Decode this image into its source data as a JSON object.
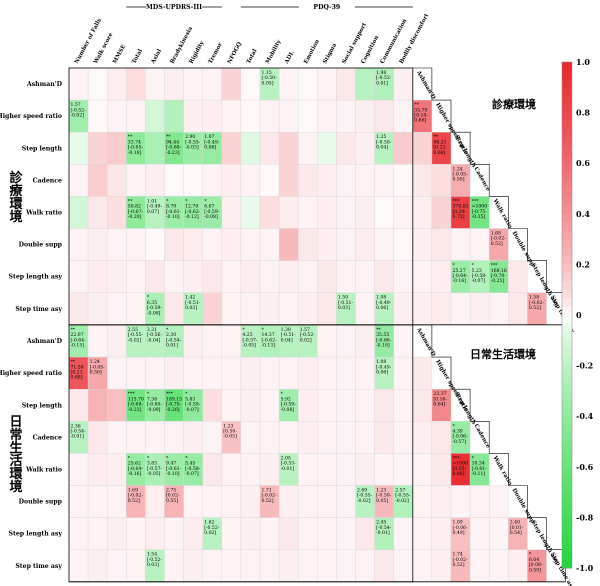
{
  "chart_data": {
    "type": "heatmap",
    "group_labels": [
      "MDS-UPDRS-III",
      "PDQ-39"
    ],
    "columns": [
      "Number of Falls",
      "Walk score",
      "MMSE",
      "Total",
      "Axial",
      "Bradykinesia",
      "Rigidity",
      "Tremor",
      "NFOGQ",
      "Total",
      "Mobility",
      "ADL",
      "Emotion",
      "Stigma",
      "Social support",
      "Cognition",
      "Communication",
      "Bodily discomfort"
    ],
    "rows": [
      "Ashman'D",
      "Higher speed ratio",
      "Step length",
      "Cadence",
      "Walk ratio",
      "Double supp",
      "Step length asy",
      "Step time asy"
    ],
    "diag_labels": [
      "Ashman'D",
      "Higher speed ratio",
      "Step length",
      "Cadence",
      "Walk ratio",
      "Double supp",
      "Step length asy",
      "Step time asy"
    ],
    "section_labels": [
      "診療環境",
      "日常生活環境"
    ],
    "section_titles": [
      "診療環境",
      "日常生活環境"
    ],
    "colorbar": {
      "min": -1.0,
      "max": 1.0,
      "ticks": [
        "1.0",
        "0.8",
        "0.6",
        "0.4",
        "0.2",
        "0",
        "-0.2",
        "-0.4",
        "-0.6",
        "-0.8",
        "-1.0"
      ],
      "positive_color": "#e8262c",
      "negative_color": "#22d63c"
    },
    "blocks": [
      {
        "values": [
          [
            0.02,
            0.01,
            0.03,
            0.08,
            0.02,
            0.03,
            0.02,
            0.02,
            0.12,
            0.01,
            -0.22,
            0.02,
            0.01,
            0.02,
            0.05,
            -0.22,
            -0.25,
            0.03
          ],
          [
            -0.32,
            0.01,
            0.02,
            0.02,
            -0.12,
            -0.24,
            0.03,
            0.03,
            0.02,
            0.01,
            0.02,
            0.02,
            0.01,
            0.02,
            0.02,
            0.03,
            0.05,
            0.02
          ],
          [
            -0.05,
            0.12,
            0.15,
            -0.42,
            -0.28,
            -0.48,
            -0.35,
            -0.38,
            0.12,
            -0.08,
            0.05,
            0.12,
            0.02,
            -0.05,
            0.05,
            0.03,
            -0.22,
            0.15
          ],
          [
            0.02,
            0.14,
            0.06,
            0.02,
            0.03,
            0.01,
            0.01,
            0.02,
            0.03,
            0.02,
            0.01,
            0.12,
            0.05,
            0.03,
            0.02,
            0.02,
            0.02,
            0.01
          ],
          [
            -0.12,
            0.05,
            0.08,
            -0.42,
            -0.22,
            -0.35,
            -0.38,
            -0.35,
            0.03,
            -0.05,
            0.08,
            0.04,
            0.02,
            0.03,
            0.02,
            0.03,
            0.01,
            0.02
          ],
          [
            0.02,
            0.03,
            0.02,
            0.02,
            0.01,
            0.05,
            0.04,
            0.02,
            0.03,
            0.02,
            0.02,
            0.22,
            0.05,
            0.03,
            0.02,
            0.04,
            0.02,
            0.01
          ],
          [
            0.02,
            0.04,
            0.03,
            0.02,
            0.05,
            0.02,
            0.03,
            0.05,
            0.02,
            0.04,
            0.02,
            0.03,
            0.02,
            0.05,
            0.02,
            0.02,
            0.05,
            0.02
          ],
          [
            0.05,
            0.03,
            0.02,
            0.02,
            -0.28,
            0.05,
            -0.22,
            0.12,
            0.02,
            0.02,
            0.03,
            0.02,
            0.03,
            0.05,
            -0.22,
            0.02,
            -0.22,
            0.03
          ]
        ],
        "texts": [
          [
            "",
            "",
            "",
            "",
            "",
            "",
            "",
            "",
            "",
            "",
            "1.15\n[-0.50-\n0.05]",
            "",
            "",
            "",
            "",
            "",
            "1.98\n[-0.53-\n0.01]",
            ""
          ],
          [
            "1.57\n[-0.52-\n-0.02]",
            "",
            "",
            "",
            "",
            "",
            "",
            "",
            "",
            "",
            "",
            "",
            "",
            "",
            "",
            "",
            "",
            ""
          ],
          [
            "",
            "",
            "",
            "**\n33.74\n[-0.65-\n-0.18]",
            "",
            "**\n94.44\n[-0.68-\n-0.23]",
            "2.90\n[-0.55-\n-0.03]",
            "1.07\n[-0.49-\n0.06]",
            "",
            "",
            "",
            "",
            "",
            "",
            "",
            "",
            "1.25\n[-0.50-\n0.04]",
            ""
          ],
          [
            "",
            "",
            "",
            "",
            "",
            "",
            "",
            "",
            "",
            "",
            "",
            "",
            "",
            "",
            "",
            "",
            "",
            ""
          ],
          [
            "",
            "",
            "",
            "**\n58.82\n[-0.67-\n-0.20]",
            "1.01\n[-0.49-\n0.07]",
            "*\n8.79\n[-0.61-\n-0.10]",
            "*\n12.70\n[-0.62-\n-0.12]",
            "*\n6.67\n[-0.59-\n-0.08]",
            "",
            "",
            "",
            "",
            "",
            "",
            "",
            "",
            "",
            ""
          ],
          [
            "",
            "",
            "",
            "",
            "",
            "",
            "",
            "",
            "",
            "",
            "",
            "",
            "",
            "",
            "",
            "",
            "",
            ""
          ],
          [
            "",
            "",
            "",
            "",
            "",
            "",
            "",
            "",
            "",
            "",
            "",
            "",
            "",
            "",
            "",
            "",
            "",
            ""
          ],
          [
            "",
            "",
            "",
            "",
            "*\n6.35\n[-0.59-\n-0.08]",
            "",
            "1.42\n[-0.51-\n0.03]",
            "",
            "",
            "",
            "",
            "",
            "",
            "",
            "1.50\n[-0.51-\n0.03]",
            "",
            "1.08\n[-0.49-\n0.06]",
            ""
          ]
        ],
        "corr_values": [
          [
            null,
            null,
            null,
            null,
            null,
            null,
            null
          ],
          [
            0.55,
            null,
            null,
            null,
            null,
            null,
            null
          ],
          [
            0.12,
            0.82,
            null,
            null,
            null,
            null,
            null
          ],
          [
            0.05,
            0.08,
            0.28,
            null,
            null,
            null,
            null
          ],
          [
            0.03,
            0.12,
            0.85,
            -0.55,
            null,
            null,
            null
          ],
          [
            0.03,
            0.05,
            0.02,
            0.02,
            0.3,
            null,
            null
          ],
          [
            0.02,
            0.03,
            -0.35,
            -0.25,
            -0.45,
            0.05,
            null
          ],
          [
            0.03,
            0.04,
            0.02,
            0.03,
            0.02,
            0.05,
            0.3
          ]
        ],
        "corr_texts": [
          [
            "",
            "",
            "",
            "",
            "",
            "",
            ""
          ],
          [
            "**\n35.79\n[0.18-\n0.66]",
            "",
            "",
            "",
            "",
            "",
            ""
          ],
          [
            "",
            "**\n86.21\n[0.22-\n0.68]",
            "",
            "",
            "",
            "",
            ""
          ],
          [
            "",
            "",
            "1.24\n[-0.05-\n0.50]",
            "",
            "",
            "",
            ""
          ],
          [
            "",
            "",
            "***\n370.81\n[0.29-\n0.72]",
            "***\n>1000\n[-0.75-\n-0.35]",
            "",
            "",
            ""
          ],
          [
            "",
            "",
            "",
            "",
            "1.68\n[-0.02-\n0.52]",
            "",
            ""
          ],
          [
            "",
            "",
            "*\n25.27\n[-0.64-\n-0.16]",
            "*\n5.23\n[-0.58-\n-0.07]",
            "***\n168.16\n[-0.70-\n-0.25]",
            "",
            ""
          ],
          [
            "",
            "",
            "",
            "",
            "",
            "",
            "1.58\n[-0.02-\n0.52]"
          ]
        ]
      },
      {
        "values": [
          [
            -0.32,
            0.02,
            0.03,
            -0.22,
            -0.22,
            -0.24,
            0.03,
            0.02,
            0.02,
            -0.22,
            -0.25,
            -0.22,
            -0.22,
            0.02,
            0.02,
            0.03,
            -0.38,
            0.02
          ],
          [
            0.72,
            0.3,
            0.02,
            0.02,
            0.02,
            0.03,
            0.02,
            0.02,
            0.02,
            0.03,
            0.02,
            0.02,
            0.03,
            0.02,
            0.02,
            0.02,
            -0.22,
            0.02
          ],
          [
            0.05,
            0.25,
            0.2,
            -0.55,
            -0.38,
            -0.6,
            -0.4,
            0.08,
            0.02,
            0.03,
            0.02,
            -0.32,
            0.03,
            0.02,
            0.02,
            0.02,
            0.05,
            0.02
          ],
          [
            -0.22,
            0.05,
            0.02,
            0.02,
            0.02,
            0.02,
            0.03,
            0.02,
            0.18,
            0.02,
            0.02,
            0.02,
            0.03,
            0.02,
            0.02,
            0.02,
            0.05,
            0.02
          ],
          [
            0.02,
            0.04,
            0.03,
            -0.38,
            -0.28,
            -0.35,
            -0.38,
            0.05,
            0.02,
            0.02,
            0.03,
            -0.22,
            0.02,
            0.02,
            0.02,
            0.03,
            0.02,
            0.02
          ],
          [
            0.02,
            0.02,
            0.02,
            0.25,
            0.03,
            0.25,
            0.02,
            0.02,
            0.02,
            0.03,
            0.22,
            0.03,
            0.02,
            0.02,
            0.02,
            -0.22,
            0.22,
            -0.25
          ],
          [
            0.02,
            0.02,
            0.03,
            0.02,
            0.03,
            0.02,
            0.04,
            -0.22,
            0.02,
            0.03,
            0.02,
            0.05,
            0.02,
            0.02,
            0.02,
            0.05,
            -0.25,
            0.02
          ],
          [
            0.02,
            0.03,
            0.02,
            0.02,
            -0.22,
            0.02,
            0.03,
            0.02,
            0.02,
            0.02,
            0.02,
            0.03,
            0.02,
            0.02,
            0.02,
            0.02,
            0.05,
            0.02
          ]
        ],
        "texts": [
          [
            "**\n22.97\n[-0.64-\n-0.15]",
            "",
            "",
            "2.55\n[-0.55-\n-0.02]",
            "3.31\n[-0.56-\n-0.04]",
            "*\n2.30\n[-0.54-\n0.01]",
            "",
            "",
            "",
            "*\n4.25\n[-0.57-\n-0.05]",
            "*\n14.37\n[-0.62-\n-0.13]",
            "1.39\n[-0.51-\n0.04]",
            "1.57\n[-0.52-\n0.02]",
            "",
            "",
            "",
            "**\n35.55\n[-0.66-\n-0.18]",
            ""
          ],
          [
            "**\n71.56\n[0.21-\n0.68]",
            "1.24\n[-0.05-\n0.50]",
            "",
            "",
            "",
            "",
            "",
            "",
            "",
            "",
            "",
            "",
            "",
            "",
            "",
            "",
            "1.08\n[-0.49-\n0.06]",
            ""
          ],
          [
            "",
            "",
            "",
            "***\n115.70\n[-0.69-\n-0.23]",
            "*\n7.36\n[-0.60-\n-0.09]",
            "***\n189.15\n[-0.70-\n-0.26]",
            "*\n5.83\n[-0.59-\n-0.07]",
            "",
            "",
            "",
            "",
            "*\n5.92\n[-0.59-\n-0.08]",
            "",
            "",
            "",
            "",
            "",
            ""
          ],
          [
            "2.36\n[-0.54-\n-0.01]",
            "",
            "",
            "",
            "",
            "",
            "",
            "",
            "1.23\n[0.50-\n-0.05]",
            "",
            "",
            "",
            "",
            "",
            "",
            "",
            "",
            ""
          ],
          [
            "",
            "",
            "",
            "*\n25.62\n[-0.64-\n-0.16]",
            "*\n3.83\n[-0.57-\n-0.05]",
            "*\n9.47\n[-0.61-\n-0.10]",
            "*\n5.45\n[-0.58-\n-0.07]",
            "",
            "",
            "",
            "",
            "2.05\n[-0.53-\n-0.01]",
            "",
            "",
            "",
            "",
            "",
            ""
          ],
          [
            "",
            "",
            "",
            "1.69\n[-0.02-\n0.52]",
            "",
            "2.75\n[0.02-\n0.55]",
            "",
            "",
            "",
            "",
            "1.71\n[-0.02-\n0.52]",
            "",
            "",
            "",
            "",
            "2.69\n[-0.55-\n-0.02]",
            "1.23\n[-0.50-\n0.05]",
            "2.57\n[-0.55-\n-0.02]"
          ],
          [
            "",
            "",
            "",
            "",
            "",
            "",
            "",
            "1.62\n[-0.52-\n0.02]",
            "",
            "",
            "",
            "",
            "",
            "",
            "",
            "",
            "2.45\n[-0.54-\n-0.01]",
            ""
          ],
          [
            "",
            "",
            "",
            "",
            "1.54\n[-0.52-\n0.03]",
            "",
            "",
            "",
            "",
            "",
            "",
            "",
            "",
            "",
            "",
            "",
            "",
            ""
          ]
        ],
        "corr_values": [
          [
            null,
            null,
            null,
            null,
            null,
            null,
            null
          ],
          [
            0.05,
            null,
            null,
            null,
            null,
            null,
            null
          ],
          [
            0.05,
            0.45,
            null,
            null,
            null,
            null,
            null
          ],
          [
            0.03,
            0.05,
            -0.38,
            null,
            null,
            null,
            null
          ],
          [
            0.02,
            0.05,
            0.95,
            -0.45,
            null,
            null,
            null
          ],
          [
            0.02,
            0.03,
            0.02,
            0.02,
            0.02,
            null,
            null
          ],
          [
            0.02,
            0.03,
            0.2,
            0.02,
            0.02,
            0.25,
            null
          ],
          [
            0.02,
            0.03,
            0.22,
            0.02,
            0.02,
            0.03,
            0.38
          ]
        ],
        "corr_texts": [
          [
            "",
            "",
            "",
            "",
            "",
            "",
            ""
          ],
          [
            "",
            "",
            "",
            "",
            "",
            "",
            ""
          ],
          [
            "",
            "23.37\n[0.16-\n0.64]",
            "",
            "",
            "",
            "",
            ""
          ],
          [
            "",
            "",
            "*\n4.39\n[-0.06-\n-0.57]",
            "",
            "",
            "",
            ""
          ],
          [
            "",
            "",
            "***\n>1000\n[0.35-\n0.86]",
            "*\n10.34\n[-0.61-\n-0.11]",
            "",
            "",
            ""
          ],
          [
            "",
            "",
            "",
            "",
            "",
            "",
            ""
          ],
          [
            "",
            "",
            "1.09\n[-0.06-\n0.49]",
            "",
            "",
            "2.40\n[0.01-\n0.54]",
            ""
          ],
          [
            "",
            "",
            "1.74\n[-0.02-\n0.52]",
            "",
            "",
            "",
            "*\n6.04\n[0.08-\n0.59]"
          ]
        ]
      }
    ]
  }
}
